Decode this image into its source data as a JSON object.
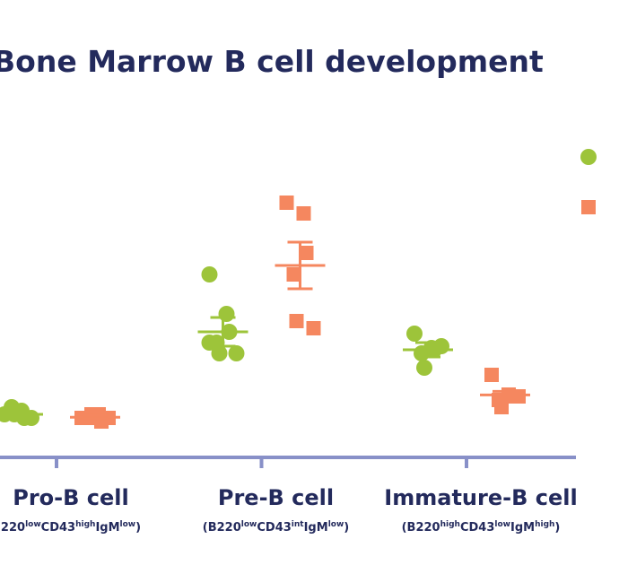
{
  "chart_data": {
    "type": "dot",
    "title": "Bone Marrow B cell development",
    "categories": [
      "Pro-B cell",
      "Pre-B cell",
      "Immature-B cell"
    ],
    "sublabels": [
      [
        "220",
        "low",
        "CD43",
        "high",
        "IgM",
        "low",
        ")"
      ],
      [
        "(B220",
        "low",
        "CD43",
        "int",
        "IgM",
        "low",
        ")"
      ],
      [
        "(B220",
        "high",
        "CD43",
        "low",
        "IgM",
        "high",
        ")"
      ]
    ],
    "ylim": [
      0,
      100
    ],
    "axis_color": "#8890c8",
    "series": [
      {
        "color": "#9dc43a",
        "marker": "circle",
        "values": [
          [
            12,
            13,
            11,
            14,
            12,
            11
          ],
          [
            51,
            40,
            35,
            32,
            29,
            29,
            32
          ],
          [
            34.5,
            30.5,
            30,
            29,
            25,
            31
          ]
        ],
        "mean": [
          12,
          35,
          30
        ],
        "error": [
          0.7,
          4,
          2
        ]
      },
      {
        "color": "#f5875f",
        "marker": "square",
        "values": [
          [
            11,
            12,
            10,
            11,
            12,
            11
          ],
          [
            71,
            68,
            57,
            51,
            38,
            36
          ],
          [
            23,
            17.5,
            17,
            16,
            14,
            17
          ]
        ],
        "mean": [
          11.2,
          53.5,
          17.4
        ],
        "error": [
          0.5,
          6.5,
          1
        ]
      }
    ]
  }
}
